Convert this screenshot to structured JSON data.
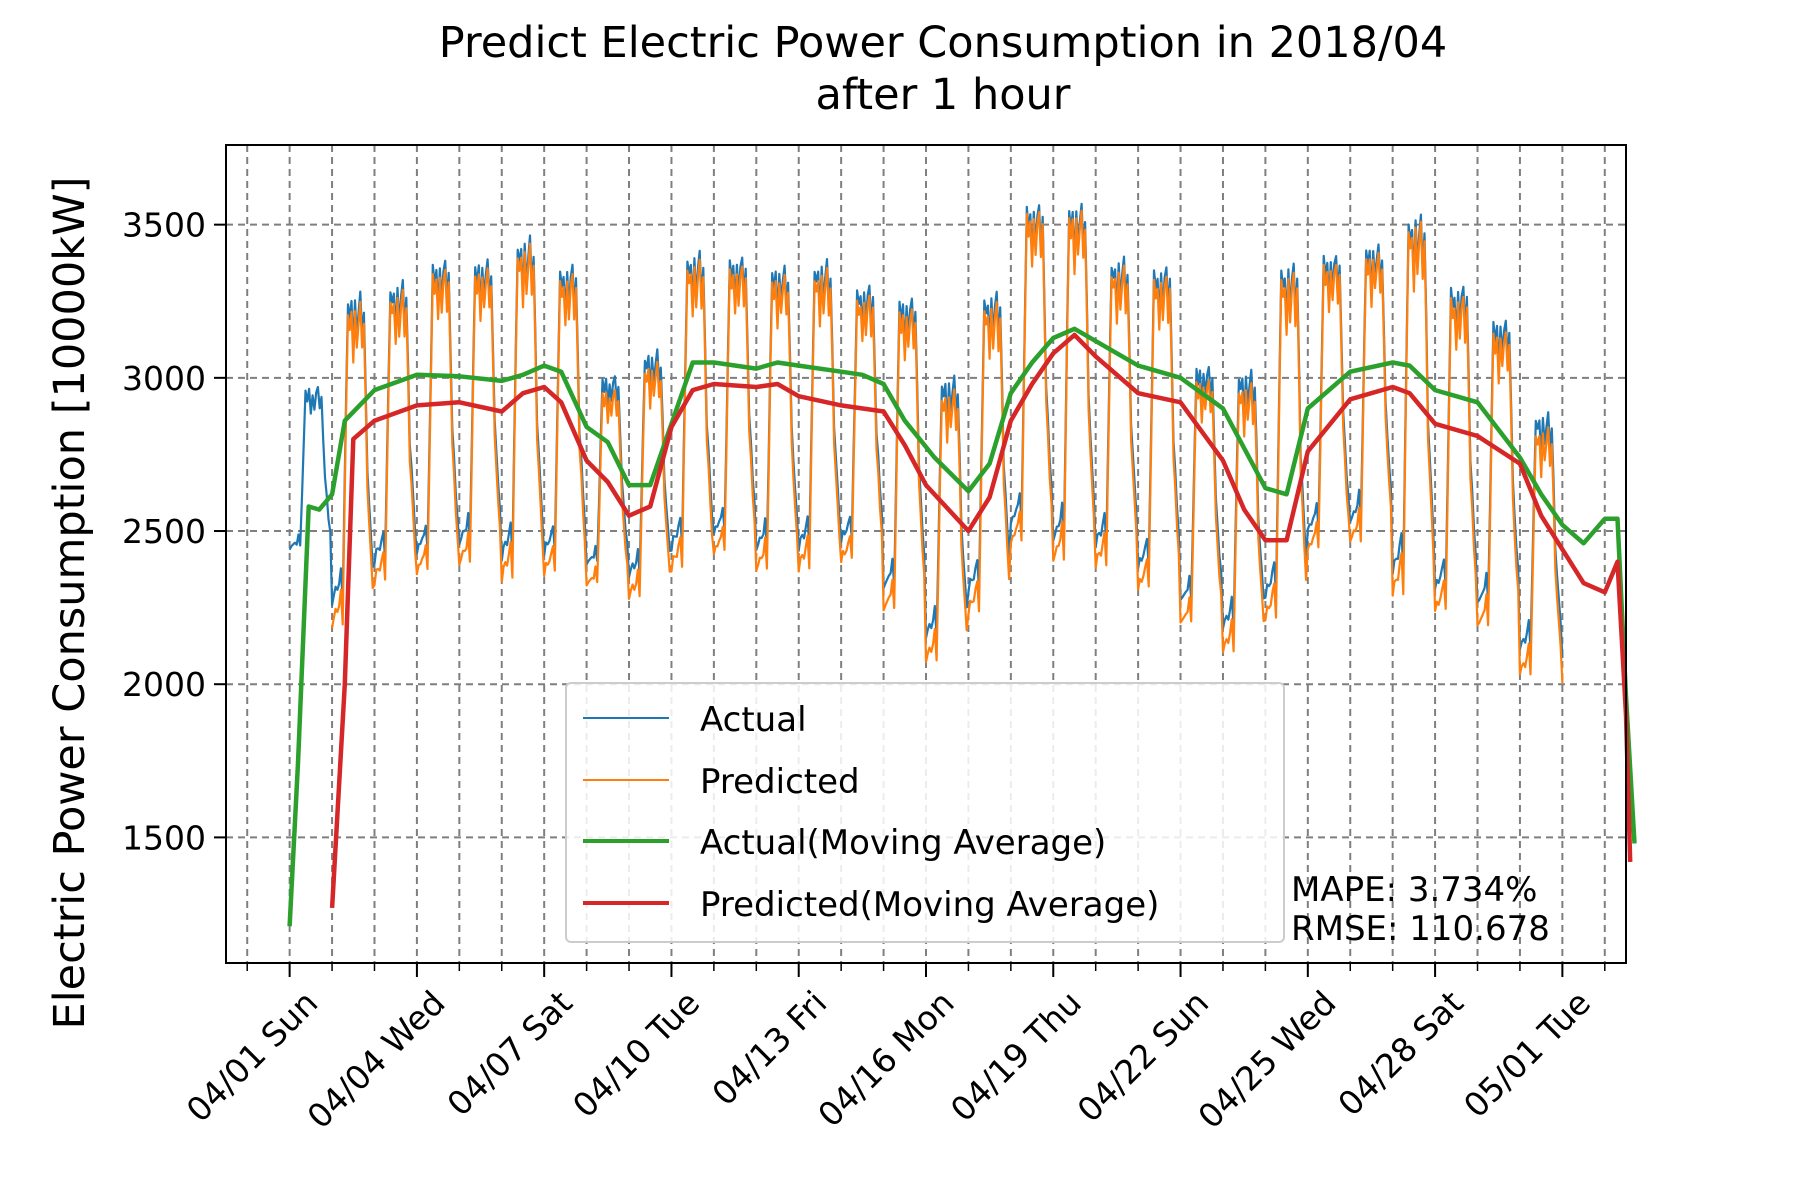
{
  "chart_data": {
    "type": "line",
    "title": "Predict Electric Power Consumption in 2018/04",
    "subtitle": "after 1 hour",
    "ylabel": "Electric Power Consumption [10000kW]",
    "xlabel": "",
    "ylim": [
      1090,
      3760
    ],
    "xlim_days": [
      -1.5,
      31.5
    ],
    "x_start": "2018-04-01",
    "y_ticks": [
      1500,
      2000,
      2500,
      3000,
      3500
    ],
    "x_ticks": [
      "04/01 Sun",
      "04/04 Wed",
      "04/07 Sat",
      "04/10 Tue",
      "04/13 Fri",
      "04/16 Mon",
      "04/19 Thu",
      "04/22 Sun",
      "04/25 Wed",
      "04/28 Sat",
      "05/01 Tue"
    ],
    "grid": true,
    "legend_position": "lower center",
    "daily_actual": [
      [
        2430,
        2990
      ],
      [
        2260,
        3310
      ],
      [
        2400,
        3340
      ],
      [
        2420,
        3420
      ],
      [
        2450,
        3420
      ],
      [
        2410,
        3490
      ],
      [
        2420,
        3400
      ],
      [
        2380,
        3030
      ],
      [
        2350,
        3110
      ],
      [
        2440,
        3440
      ],
      [
        2480,
        3430
      ],
      [
        2430,
        3400
      ],
      [
        2440,
        3410
      ],
      [
        2460,
        3330
      ],
      [
        2300,
        3300
      ],
      [
        2150,
        3030
      ],
      [
        2300,
        3310
      ],
      [
        2510,
        3610
      ],
      [
        2460,
        3610
      ],
      [
        2450,
        3420
      ],
      [
        2370,
        3400
      ],
      [
        2260,
        3070
      ],
      [
        2180,
        3050
      ],
      [
        2280,
        3410
      ],
      [
        2490,
        3440
      ],
      [
        2520,
        3470
      ],
      [
        2360,
        3570
      ],
      [
        2300,
        3340
      ],
      [
        2250,
        3230
      ],
      [
        2110,
        2910
      ],
      [
        2080,
        2980
      ]
    ],
    "series": [
      {
        "name": "Actual",
        "color": "#1f77b4",
        "style": "hourly",
        "values_source": "daily_actual",
        "x_range": [
          0,
          30
        ]
      },
      {
        "name": "Predicted",
        "color": "#ff7f0e",
        "style": "hourly",
        "values_source": "daily_actual",
        "x_range": [
          1,
          30
        ]
      },
      {
        "name": "Actual(Moving Average)",
        "color": "#2ca02c",
        "style": "moving-average",
        "points": [
          [
            0,
            1210
          ],
          [
            0.2,
            1750
          ],
          [
            0.45,
            2580
          ],
          [
            0.7,
            2570
          ],
          [
            1.0,
            2620
          ],
          [
            1.3,
            2860
          ],
          [
            2,
            2960
          ],
          [
            3,
            3010
          ],
          [
            4,
            3005
          ],
          [
            5,
            2990
          ],
          [
            5.5,
            3010
          ],
          [
            6,
            3040
          ],
          [
            6.4,
            3020
          ],
          [
            7,
            2840
          ],
          [
            7.5,
            2790
          ],
          [
            8,
            2650
          ],
          [
            8.5,
            2650
          ],
          [
            9,
            2850
          ],
          [
            9.5,
            3050
          ],
          [
            10,
            3050
          ],
          [
            11,
            3030
          ],
          [
            11.5,
            3050
          ],
          [
            12,
            3040
          ],
          [
            13,
            3020
          ],
          [
            13.5,
            3010
          ],
          [
            14,
            2980
          ],
          [
            14.5,
            2860
          ],
          [
            15.2,
            2740
          ],
          [
            16,
            2630
          ],
          [
            16.5,
            2720
          ],
          [
            17,
            2950
          ],
          [
            17.5,
            3050
          ],
          [
            18,
            3130
          ],
          [
            18.5,
            3160
          ],
          [
            19,
            3120
          ],
          [
            20,
            3040
          ],
          [
            21,
            3000
          ],
          [
            22,
            2900
          ],
          [
            23,
            2640
          ],
          [
            23.5,
            2620
          ],
          [
            24,
            2900
          ],
          [
            25,
            3020
          ],
          [
            26,
            3050
          ],
          [
            26.4,
            3040
          ],
          [
            27,
            2960
          ],
          [
            28,
            2920
          ],
          [
            29,
            2740
          ],
          [
            29.5,
            2620
          ],
          [
            30,
            2520
          ],
          [
            30.5,
            2460
          ],
          [
            31,
            2540
          ],
          [
            31.3,
            2540
          ],
          [
            31.5,
            1960
          ],
          [
            31.7,
            1480
          ]
        ]
      },
      {
        "name": "Predicted(Moving Average)",
        "color": "#d62728",
        "style": "moving-average",
        "points": [
          [
            1,
            1270
          ],
          [
            1.3,
            2000
          ],
          [
            1.5,
            2800
          ],
          [
            2,
            2860
          ],
          [
            3,
            2910
          ],
          [
            4,
            2920
          ],
          [
            5,
            2890
          ],
          [
            5.5,
            2950
          ],
          [
            6,
            2970
          ],
          [
            6.4,
            2920
          ],
          [
            7,
            2730
          ],
          [
            7.5,
            2660
          ],
          [
            8,
            2550
          ],
          [
            8.5,
            2580
          ],
          [
            9,
            2840
          ],
          [
            9.5,
            2960
          ],
          [
            10,
            2980
          ],
          [
            11,
            2970
          ],
          [
            11.5,
            2980
          ],
          [
            12,
            2940
          ],
          [
            13,
            2910
          ],
          [
            14,
            2890
          ],
          [
            14.5,
            2780
          ],
          [
            15,
            2650
          ],
          [
            16,
            2500
          ],
          [
            16.5,
            2610
          ],
          [
            17,
            2860
          ],
          [
            17.5,
            2980
          ],
          [
            18,
            3080
          ],
          [
            18.5,
            3140
          ],
          [
            19,
            3070
          ],
          [
            20,
            2950
          ],
          [
            21,
            2920
          ],
          [
            22,
            2730
          ],
          [
            22.5,
            2570
          ],
          [
            23,
            2470
          ],
          [
            23.5,
            2470
          ],
          [
            24,
            2760
          ],
          [
            25,
            2930
          ],
          [
            26,
            2970
          ],
          [
            26.4,
            2950
          ],
          [
            27,
            2850
          ],
          [
            28,
            2810
          ],
          [
            29,
            2720
          ],
          [
            29.5,
            2550
          ],
          [
            30,
            2440
          ],
          [
            30.5,
            2330
          ],
          [
            31,
            2300
          ],
          [
            31.3,
            2400
          ],
          [
            31.5,
            1900
          ],
          [
            31.6,
            1420
          ]
        ]
      }
    ],
    "annotations": [
      "MAPE: 3.734%",
      "RMSE: 110.678"
    ]
  }
}
